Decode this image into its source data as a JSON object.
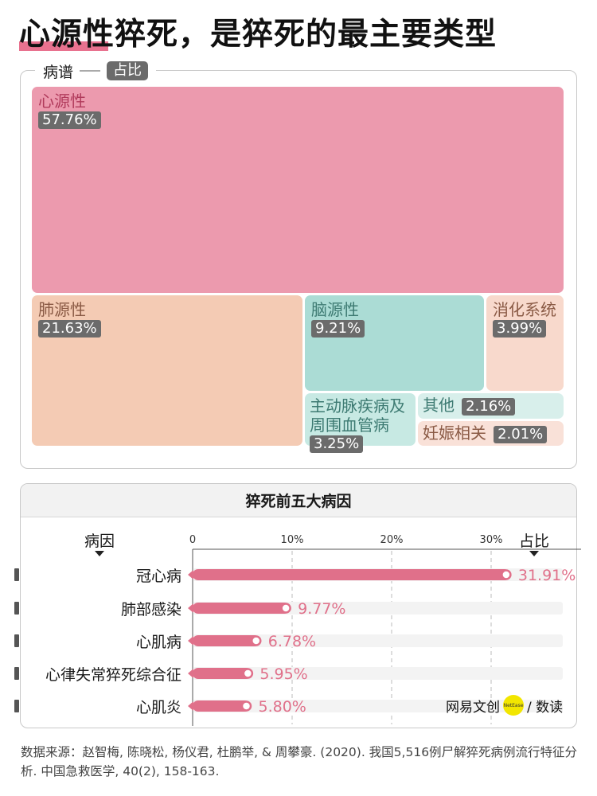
{
  "title": "心源性猝死，是猝死的最主要类型",
  "treemap": {
    "legend_label": "病谱",
    "legend_tag": "占比",
    "tiles": [
      {
        "label": "心源性",
        "pct": "57.76%",
        "color": "#ec9aae",
        "label_color": "#b03a5b"
      },
      {
        "label": "肺源性",
        "pct": "21.63%",
        "color": "#f4cbb4",
        "label_color": "#8a5a45"
      },
      {
        "label": "脑源性",
        "pct": "9.21%",
        "color": "#abdcd5",
        "label_color": "#3d7a72"
      },
      {
        "label": "消化系统",
        "pct": "3.99%",
        "color": "#f8d9cc",
        "label_color": "#8a5a45"
      },
      {
        "label": "主动脉疾病及周围血管病",
        "pct": "3.25%",
        "color": "#c7e9e3",
        "label_color": "#3d7a72"
      },
      {
        "label": "其他",
        "pct": "2.16%",
        "color": "#d8efeb",
        "label_color": "#3d7a72"
      },
      {
        "label": "妊娠相关",
        "pct": "2.01%",
        "color": "#f9e1d8",
        "label_color": "#8a5a45"
      }
    ]
  },
  "bar_panel": {
    "title": "猝死前五大病因",
    "cause_header": "病因",
    "pct_header": "占比"
  },
  "chart_data": {
    "type": "bar",
    "orientation": "horizontal",
    "title": "猝死前五大病因",
    "categories": [
      "冠心病",
      "肺部感染",
      "心肌病",
      "心律失常猝死综合征",
      "心肌炎"
    ],
    "values": [
      31.91,
      9.77,
      6.78,
      5.95,
      5.8
    ],
    "value_labels": [
      "31.91%",
      "9.77%",
      "6.78%",
      "5.95%",
      "5.80%"
    ],
    "xlim": [
      0,
      35
    ],
    "ticks": [
      0,
      10,
      20,
      30
    ],
    "tick_labels": [
      "0",
      "10%",
      "20%",
      "30%"
    ],
    "bar_color": "#e0708a",
    "track_color": "#f3f3f3",
    "grid": "dashed vertical"
  },
  "watermark": {
    "text": "网易文创",
    "badge": "NetEase",
    "suffix": "/ 数读"
  },
  "source": "数据来源：赵智梅, 陈晓松, 杨仪君, 杜鹏举, & 周攀豪. (2020). 我国5,516例尸解猝死病例流行特征分析. 中国急救医学, 40(2), 158-163."
}
